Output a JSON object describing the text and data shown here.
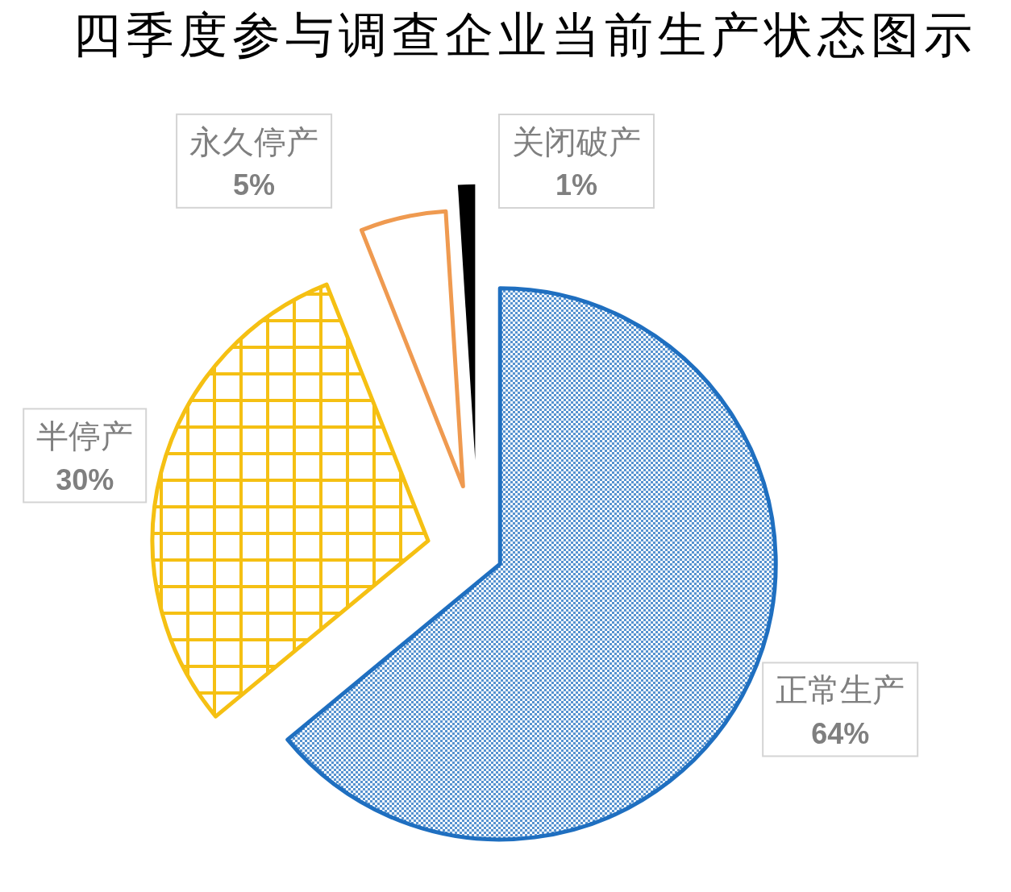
{
  "chart_data": {
    "type": "pie",
    "title": "四季度参与调查企业当前生产状态图示",
    "categories": [
      "正常生产",
      "半停产",
      "永久停产",
      "关闭破产"
    ],
    "values": [
      64,
      30,
      5,
      1
    ],
    "colors": [
      "#1f6fc0",
      "#f5c013",
      "#ef9a50",
      "#000000"
    ],
    "value_labels": [
      "64%",
      "30%",
      "5%",
      "1%"
    ]
  }
}
